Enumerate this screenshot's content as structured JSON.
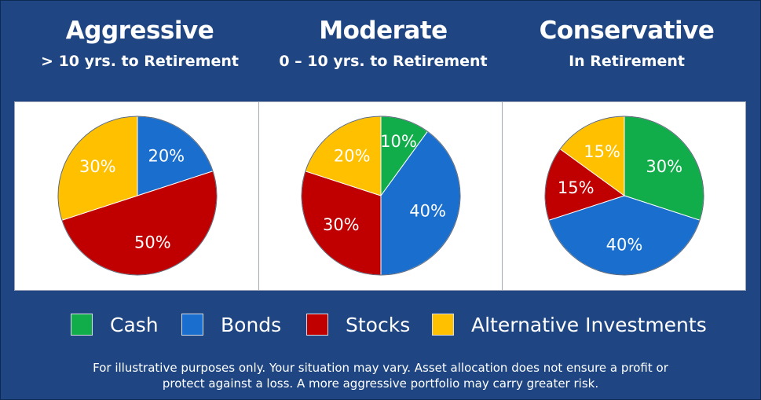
{
  "colors": {
    "background": "#1f4682",
    "cash": "#12ad4b",
    "bonds": "#1a6fce",
    "stocks": "#c00000",
    "alternative": "#ffc000"
  },
  "headers": [
    {
      "title": "Aggressive",
      "subtitle": "> 10 yrs. to Retirement"
    },
    {
      "title": "Moderate",
      "subtitle": "0 – 10 yrs. to Retirement"
    },
    {
      "title": "Conservative",
      "subtitle": "In Retirement"
    }
  ],
  "legend": [
    {
      "label": "Cash",
      "color": "#12ad4b"
    },
    {
      "label": "Bonds",
      "color": "#1a6fce"
    },
    {
      "label": "Stocks",
      "color": "#c00000"
    },
    {
      "label": "Alternative Investments",
      "color": "#ffc000"
    }
  ],
  "chart_data": [
    {
      "type": "pie",
      "title": "Aggressive",
      "subtitle": "> 10 yrs. to Retirement",
      "slices": [
        {
          "category": "Bonds",
          "value": 20,
          "label": "20%"
        },
        {
          "category": "Stocks",
          "value": 50,
          "label": "50%"
        },
        {
          "category": "Alternative Investments",
          "value": 30,
          "label": "30%"
        }
      ]
    },
    {
      "type": "pie",
      "title": "Moderate",
      "subtitle": "0 – 10 yrs. to Retirement",
      "slices": [
        {
          "category": "Cash",
          "value": 10,
          "label": "10%"
        },
        {
          "category": "Bonds",
          "value": 40,
          "label": "40%"
        },
        {
          "category": "Stocks",
          "value": 30,
          "label": "30%"
        },
        {
          "category": "Alternative Investments",
          "value": 20,
          "label": "20%"
        }
      ]
    },
    {
      "type": "pie",
      "title": "Conservative",
      "subtitle": "In Retirement",
      "slices": [
        {
          "category": "Cash",
          "value": 30,
          "label": "30%"
        },
        {
          "category": "Bonds",
          "value": 40,
          "label": "40%"
        },
        {
          "category": "Stocks",
          "value": 15,
          "label": "15%"
        },
        {
          "category": "Alternative Investments",
          "value": 15,
          "label": "15%"
        }
      ]
    }
  ],
  "disclaimer": {
    "line1": "For illustrative purposes only.  Your situation may vary.  Asset allocation does not ensure a profit or",
    "line2": "protect against a loss.  A more aggressive portfolio may carry greater risk."
  }
}
